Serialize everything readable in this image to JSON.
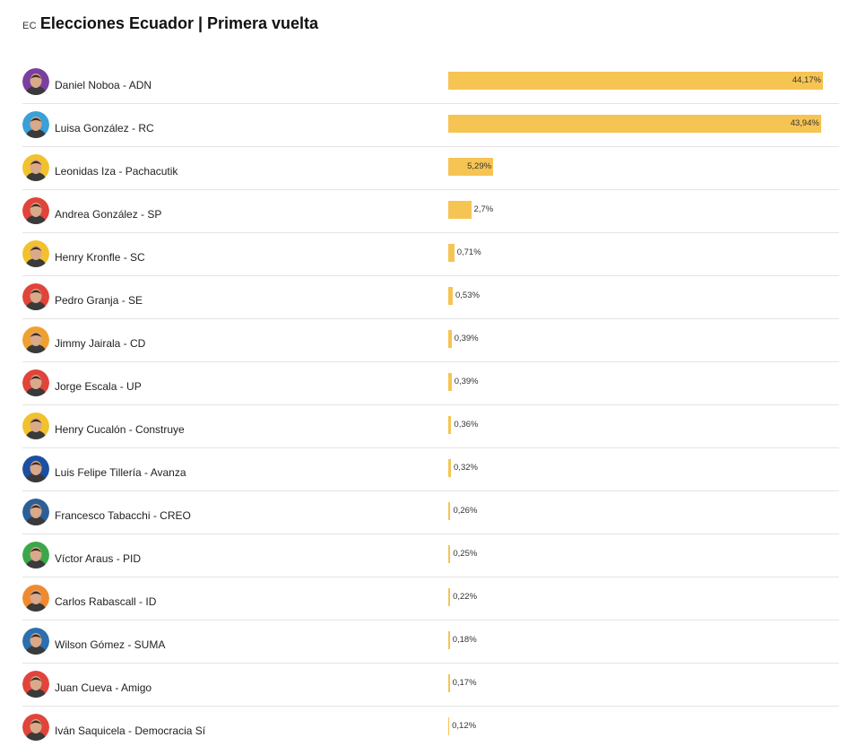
{
  "header": {
    "country": "EC",
    "title": "Elecciones Ecuador | Primera vuelta"
  },
  "chart_data": {
    "type": "bar",
    "orientation": "horizontal",
    "title": "Elecciones Ecuador | Primera vuelta",
    "xlim": [
      0,
      44.17
    ],
    "bar_color": "#f6c453",
    "categories": [
      "Daniel Noboa - ADN",
      "Luisa González - RC",
      "Leonidas Iza - Pachacutik",
      "Andrea González - SP",
      "Henry Kronfle - SC",
      "Pedro Granja - SE",
      "Jimmy Jairala - CD",
      "Jorge Escala - UP",
      "Henry Cucalón - Construye",
      "Luis Felipe Tillería - Avanza",
      "Francesco Tabacchi - CREO",
      "Víctor Araus - PID",
      "Carlos Rabascall - ID",
      "Wilson Gómez - SUMA",
      "Juan Cueva - Amigo",
      "Iván Saquicela - Democracia Sí"
    ],
    "values": [
      44.17,
      43.94,
      5.29,
      2.7,
      0.71,
      0.53,
      0.39,
      0.39,
      0.36,
      0.32,
      0.26,
      0.25,
      0.22,
      0.18,
      0.17,
      0.12
    ],
    "labels": [
      "44,17%",
      "43,94%",
      "5,29%",
      "2,7%",
      "0,71%",
      "0,53%",
      "0,39%",
      "0,39%",
      "0,36%",
      "0,32%",
      "0,26%",
      "0,25%",
      "0,22%",
      "0,18%",
      "0,17%",
      "0,12%"
    ],
    "avatar_colors": [
      "#7b3fa0",
      "#3aa0d8",
      "#f2c12e",
      "#e0443a",
      "#f2c12e",
      "#e0443a",
      "#f0a030",
      "#e0443a",
      "#f2c12e",
      "#1d4fa0",
      "#2b5f9a",
      "#3aa84a",
      "#f08a30",
      "#2b6fb0",
      "#e0443a",
      "#e0443a"
    ]
  }
}
